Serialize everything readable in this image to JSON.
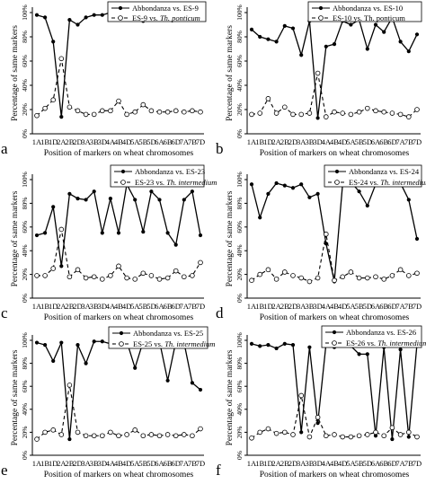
{
  "chart_data": [
    {
      "type": "line",
      "panel_label": "a",
      "categories": [
        "1A",
        "1B",
        "1D",
        "2A",
        "2B",
        "2D",
        "3A",
        "3B",
        "3D",
        "4A",
        "4B",
        "4D",
        "5A",
        "5B",
        "5D",
        "6A",
        "6B",
        "6D",
        "7A",
        "7B",
        "7D"
      ],
      "xlabel": "Position of markers on wheat chromosomes",
      "ylabel": "Percentage of same markers",
      "yticks": [
        "0%",
        "20%",
        "40%",
        "60%",
        "80%",
        "100%"
      ],
      "ylim": [
        0,
        100
      ],
      "legend_position": "top-right",
      "series": [
        {
          "name": "Abbondanza vs. ES-9",
          "style": "solid",
          "marker": "filled-circle",
          "values": [
            98,
            96,
            76,
            14,
            94,
            90,
            96,
            98,
            98,
            100,
            97,
            100,
            96,
            93,
            98,
            100,
            97,
            99,
            96,
            99,
            98
          ]
        },
        {
          "name_parts": [
            "ES-9 vs. ",
            "Th. ponticum"
          ],
          "style": "dashed",
          "marker": "open-circle",
          "values": [
            15,
            21,
            28,
            62,
            22,
            19,
            16,
            16,
            19,
            19,
            27,
            16,
            18,
            24,
            19,
            18,
            18,
            19,
            18,
            19,
            18
          ]
        }
      ]
    },
    {
      "type": "line",
      "panel_label": "b",
      "categories": [
        "1A",
        "1B",
        "1D",
        "2A",
        "2B",
        "2D",
        "3A",
        "3B",
        "3D",
        "4A",
        "4B",
        "4D",
        "5A",
        "5B",
        "5D",
        "6A",
        "6B",
        "6D",
        "7A",
        "7B",
        "7D"
      ],
      "xlabel": "Position of markers on wheat chromosomes",
      "ylabel": "Percentage of same markers",
      "yticks": [
        "0%",
        "20%",
        "40%",
        "60%",
        "80%",
        "100%"
      ],
      "ylim": [
        0,
        100
      ],
      "legend_position": "top-right",
      "series": [
        {
          "name": "Abbondanza vs. ES-10",
          "style": "solid",
          "marker": "filled-circle",
          "values": [
            86,
            80,
            78,
            76,
            89,
            87,
            65,
            93,
            13,
            72,
            74,
            93,
            90,
            94,
            70,
            90,
            84,
            96,
            76,
            68,
            82
          ]
        },
        {
          "name": "ES-10 vs. Th. ponticum",
          "style": "dashed",
          "marker": "open-circle",
          "values": [
            16,
            17,
            29,
            17,
            22,
            16,
            16,
            17,
            50,
            14,
            18,
            17,
            16,
            18,
            21,
            19,
            18,
            17,
            16,
            14,
            20
          ]
        }
      ]
    },
    {
      "type": "line",
      "panel_label": "c",
      "categories": [
        "1A",
        "1B",
        "1D",
        "2A",
        "2B",
        "2D",
        "3A",
        "3B",
        "3D",
        "4A",
        "4B",
        "4D",
        "5A",
        "5B",
        "5D",
        "6A",
        "6B",
        "6D",
        "7A",
        "7B",
        "7D"
      ],
      "xlabel": "Position of markers on wheat chromosomes",
      "ylabel": "Percentage of same markers",
      "yticks": [
        "0%",
        "20%",
        "40%",
        "60%",
        "80%",
        "100%"
      ],
      "ylim": [
        0,
        100
      ],
      "legend_position": "top-right",
      "series": [
        {
          "name": "Abbondanza vs. ES-23",
          "style": "solid",
          "marker": "filled-circle",
          "values": [
            53,
            55,
            77,
            27,
            88,
            84,
            83,
            90,
            55,
            84,
            55,
            96,
            83,
            56,
            90,
            83,
            55,
            45,
            83,
            90,
            53
          ]
        },
        {
          "name_parts": [
            "ES-23 vs. ",
            "Th. intermedium"
          ],
          "style": "dashed",
          "marker": "open-circle",
          "values": [
            19,
            19,
            25,
            58,
            18,
            24,
            17,
            18,
            16,
            19,
            27,
            17,
            16,
            21,
            19,
            16,
            17,
            23,
            18,
            19,
            30
          ]
        }
      ]
    },
    {
      "type": "line",
      "panel_label": "d",
      "categories": [
        "1A",
        "1B",
        "1D",
        "2A",
        "2B",
        "2D",
        "3A",
        "3B",
        "3D",
        "4A",
        "4B",
        "4D",
        "5A",
        "5B",
        "5D",
        "6A",
        "6B",
        "6D",
        "7A",
        "7B",
        "7D"
      ],
      "xlabel": "Position of markers on wheat chromosomes",
      "ylabel": "Percentage of same markers",
      "yticks": [
        "0%",
        "20%",
        "40%",
        "60%",
        "80%",
        "100%"
      ],
      "ylim": [
        0,
        100
      ],
      "legend_position": "top-right",
      "series": [
        {
          "name": "Abbondanza vs. ES-24",
          "style": "solid",
          "marker": "filled-circle",
          "values": [
            96,
            68,
            88,
            97,
            95,
            93,
            96,
            85,
            88,
            46,
            14,
            96,
            98,
            90,
            78,
            96,
            97,
            97,
            97,
            83,
            50
          ]
        },
        {
          "name_parts": [
            "ES-24 vs. ",
            "Th. intermedium"
          ],
          "style": "dashed",
          "marker": "open-circle",
          "values": [
            15,
            20,
            24,
            16,
            22,
            19,
            17,
            14,
            17,
            54,
            15,
            18,
            22,
            17,
            17,
            18,
            16,
            19,
            24,
            19,
            21
          ]
        }
      ]
    },
    {
      "type": "line",
      "panel_label": "e",
      "categories": [
        "1A",
        "1B",
        "1D",
        "2A",
        "2B",
        "2D",
        "3A",
        "3B",
        "3D",
        "4A",
        "4B",
        "4D",
        "5A",
        "5B",
        "5D",
        "6A",
        "6B",
        "6D",
        "7A",
        "7B",
        "7D"
      ],
      "xlabel": "Position of markers on wheat chromosomes",
      "ylabel": "Percentage of same markers",
      "yticks": [
        "0%",
        "20%",
        "40%",
        "60%",
        "80%",
        "100%"
      ],
      "ylim": [
        0,
        100
      ],
      "legend_position": "top-right",
      "series": [
        {
          "name": "Abbondanza vs. ES-25",
          "style": "solid",
          "marker": "filled-circle",
          "values": [
            98,
            96,
            82,
            98,
            14,
            96,
            80,
            99,
            99,
            97,
            99,
            99,
            76,
            99,
            98,
            99,
            65,
            99,
            98,
            63,
            57
          ]
        },
        {
          "name_parts": [
            "ES-25 vs. ",
            "Th. intermedium"
          ],
          "style": "dashed",
          "marker": "open-circle",
          "values": [
            14,
            20,
            22,
            18,
            61,
            20,
            17,
            17,
            17,
            20,
            17,
            18,
            22,
            17,
            18,
            17,
            18,
            17,
            18,
            17,
            23
          ]
        }
      ]
    },
    {
      "type": "line",
      "panel_label": "f",
      "categories": [
        "1A",
        "1B",
        "1D",
        "2A",
        "2B",
        "2D",
        "3A",
        "3B",
        "3D",
        "4A",
        "4B",
        "4D",
        "5A",
        "5B",
        "5D",
        "6A",
        "6B",
        "6D",
        "7A",
        "7B",
        "7D"
      ],
      "xlabel": "Position of markers on wheat chromosomes",
      "ylabel": "Percentage of same markers",
      "yticks": [
        "0%",
        "20%",
        "40%",
        "60%",
        "80%",
        "100%"
      ],
      "ylim": [
        0,
        100
      ],
      "legend_position": "top-right",
      "series": [
        {
          "name": "Abbondanza vs. ES-26",
          "style": "solid",
          "marker": "filled-circle",
          "values": [
            97,
            95,
            96,
            93,
            97,
            96,
            20,
            94,
            28,
            97,
            94,
            99,
            95,
            88,
            88,
            17,
            94,
            14,
            92,
            16,
            97
          ]
        },
        {
          "name_parts": [
            "ES-26 vs. ",
            "Th. intermedium"
          ],
          "style": "dashed",
          "marker": "open-circle",
          "values": [
            15,
            20,
            23,
            19,
            20,
            18,
            52,
            16,
            33,
            17,
            18,
            16,
            16,
            17,
            18,
            20,
            17,
            24,
            18,
            20,
            16
          ]
        }
      ]
    }
  ]
}
